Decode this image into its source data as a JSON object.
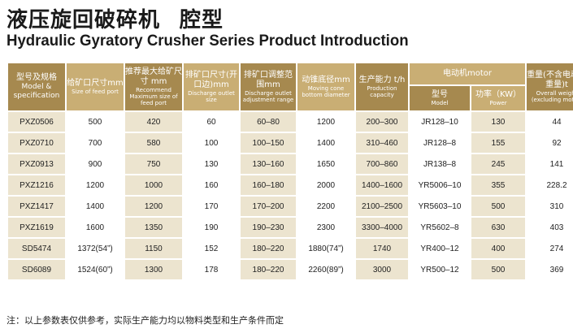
{
  "header": {
    "title_cn": "液压旋回破碎机",
    "title_cn_sub": "腔型",
    "title_en": "Hydraulic Gyratory Crusher Series Product Introduction"
  },
  "table": {
    "headers": {
      "model": {
        "cn": "型号及规格",
        "en": "Model & specification"
      },
      "feed_port": {
        "cn": "给矿口尺寸mm",
        "en": "Size of feed port"
      },
      "max_feed": {
        "cn": "推荐最大给矿尺寸 mm",
        "en": "Recommend Maximum size of feed port"
      },
      "discharge": {
        "cn": "排矿口尺寸(开口边)mm",
        "en": "Discharge outlet size"
      },
      "discharge_range": {
        "cn": "排矿口调整范围mm",
        "en": "Discharge outlet adjustment range"
      },
      "cone_diameter": {
        "cn": "动锥底径mm",
        "en": "Moving cone bottom diameter"
      },
      "capacity": {
        "cn": "生产能力 t/h",
        "en": "Production capacity"
      },
      "motor": {
        "cn": "电动机motor"
      },
      "motor_model": {
        "cn": "型号",
        "en": "Model"
      },
      "motor_power": {
        "cn": "功率（KW）",
        "en": "Power"
      },
      "weight": {
        "cn": "重量(不含电动机重量)t",
        "en": "Overall weight (excluding motor)"
      }
    },
    "rows": [
      [
        "PXZ0506",
        "500",
        "420",
        "60",
        "60–80",
        "1200",
        "200–300",
        "JR128–10",
        "130",
        "44"
      ],
      [
        "PXZ0710",
        "700",
        "580",
        "100",
        "100–150",
        "1400",
        "310–460",
        "JR128–8",
        "155",
        "92"
      ],
      [
        "PXZ0913",
        "900",
        "750",
        "130",
        "130–160",
        "1650",
        "700–860",
        "JR138–8",
        "245",
        "141"
      ],
      [
        "PXZ1216",
        "1200",
        "1000",
        "160",
        "160–180",
        "2000",
        "1400–1600",
        "YR5006–10",
        "355",
        "228.2"
      ],
      [
        "PXZ1417",
        "1400",
        "1200",
        "170",
        "170–200",
        "2200",
        "2100–2500",
        "YR5603–10",
        "500",
        "310"
      ],
      [
        "PXZ1619",
        "1600",
        "1350",
        "190",
        "190–230",
        "2300",
        "3300–4000",
        "YR5602–8",
        "630",
        "403"
      ],
      [
        "SD5474",
        "1372(54”)",
        "1150",
        "152",
        "180–220",
        "1880(74”)",
        "1740",
        "YR400–12",
        "400",
        "274"
      ],
      [
        "SD6089",
        "1524(60”)",
        "1300",
        "178",
        "180–220",
        "2260(89”)",
        "3000",
        "YR500–12",
        "500",
        "369"
      ]
    ]
  },
  "note": "注：以上参数表仅供参考，实际生产能力均以物料类型和生产条件而定"
}
